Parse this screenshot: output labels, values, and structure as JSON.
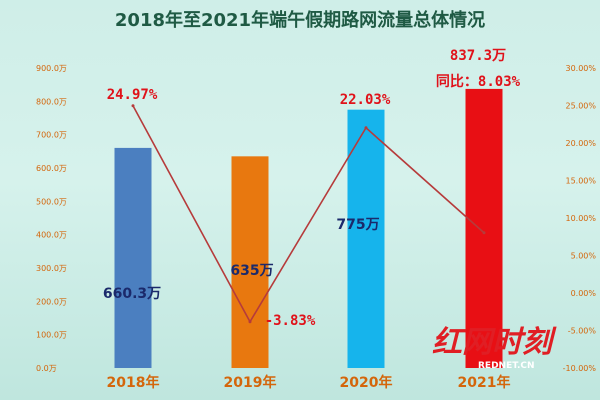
{
  "chart_data": {
    "type": "bar",
    "title": "2018年至2021年端午假期路网流量总体情况",
    "categories": [
      "2018年",
      "2019年",
      "2020年",
      "2021年"
    ],
    "series": [
      {
        "values": [
          660.3,
          635,
          775,
          837.3
        ],
        "value_labels": [
          "660.3万",
          "635万",
          "775万",
          "837.3万"
        ],
        "colors": [
          "#4b7fc0",
          "#e8780f",
          "#16b4ec",
          "#e80f14"
        ]
      },
      {
        "type": "line",
        "axis": "right",
        "values": [
          24.97,
          -3.83,
          22.03,
          8.03
        ],
        "value_labels": [
          "24.97%",
          "-3.83%",
          "22.03%",
          "同比：8.03%"
        ],
        "color": "#b63b3b"
      }
    ],
    "ylim": [
      0,
      900
    ],
    "yticks": [
      "0.0万",
      "100.0万",
      "200.0万",
      "300.0万",
      "400.0万",
      "500.0万",
      "600.0万",
      "700.0万",
      "800.0万",
      "900.0万"
    ],
    "y2lim": [
      -10,
      30
    ],
    "y2ticks": [
      "-10.00%",
      "-5.00%",
      "0.00%",
      "5.00%",
      "10.00%",
      "15.00%",
      "20.00%",
      "25.00%",
      "30.00%"
    ],
    "grid": false,
    "legend": "none"
  },
  "watermark": {
    "main": "红网时刻",
    "sub": "REDNET.CN"
  },
  "colors": {
    "title": "#1f5a44",
    "tick": "#d4660b",
    "bar_label": "#1b2a6b",
    "rate_label": "#e0121a"
  }
}
